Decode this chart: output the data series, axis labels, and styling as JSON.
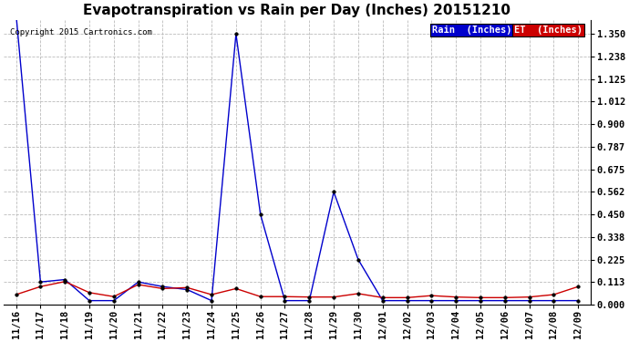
{
  "title": "Evapotranspiration vs Rain per Day (Inches) 20151210",
  "copyright_text": "Copyright 2015 Cartronics.com",
  "background_color": "#ffffff",
  "plot_bg_color": "#ffffff",
  "grid_color": "#bbbbbb",
  "labels": [
    "11/16",
    "11/17",
    "11/18",
    "11/19",
    "11/20",
    "11/21",
    "11/22",
    "11/23",
    "11/24",
    "11/25",
    "11/26",
    "11/27",
    "11/28",
    "11/29",
    "11/30",
    "12/01",
    "12/02",
    "12/03",
    "12/04",
    "12/05",
    "12/06",
    "12/07",
    "12/08",
    "12/09"
  ],
  "rain_inches": [
    1.45,
    0.113,
    0.125,
    0.02,
    0.02,
    0.113,
    0.09,
    0.075,
    0.02,
    1.35,
    0.45,
    0.02,
    0.02,
    0.562,
    0.225,
    0.02,
    0.02,
    0.02,
    0.02,
    0.02,
    0.02,
    0.02,
    0.02,
    0.02
  ],
  "et_inches": [
    0.05,
    0.09,
    0.115,
    0.06,
    0.04,
    0.1,
    0.08,
    0.085,
    0.05,
    0.08,
    0.04,
    0.04,
    0.038,
    0.038,
    0.055,
    0.035,
    0.035,
    0.045,
    0.038,
    0.035,
    0.035,
    0.038,
    0.05,
    0.09
  ],
  "yticks": [
    0.0,
    0.113,
    0.225,
    0.338,
    0.45,
    0.562,
    0.675,
    0.787,
    0.9,
    1.012,
    1.125,
    1.238,
    1.35
  ],
  "rain_color": "#0000cc",
  "et_color": "#cc0000",
  "legend_rain_bg": "#0000cc",
  "legend_et_bg": "#cc0000",
  "title_fontsize": 11,
  "tick_fontsize": 7.5,
  "copyright_fontsize": 6.5,
  "ylim": [
    0.0,
    1.42
  ],
  "legend_fontsize": 7.5
}
